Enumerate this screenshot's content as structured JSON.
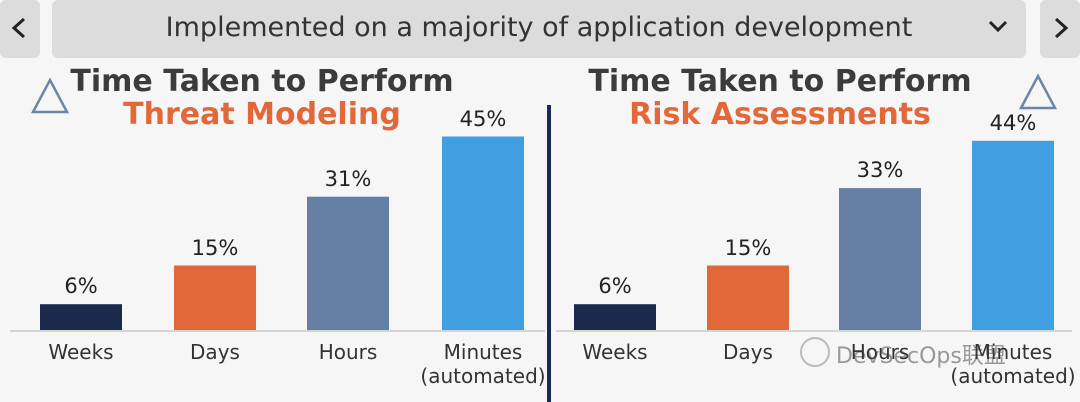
{
  "header": {
    "title": "Implemented on a majority of application development"
  },
  "chart_data": [
    {
      "type": "bar",
      "title": "Time Taken to Perform",
      "subtitle": "Threat Modeling",
      "categories": [
        "Weeks",
        "Days",
        "Hours",
        "Minutes (automated)"
      ],
      "values": [
        6,
        15,
        31,
        45
      ],
      "value_labels": [
        "6%",
        "15%",
        "31%",
        "45%"
      ],
      "colors": [
        "#1b2a4c",
        "#e2683a",
        "#667fa4",
        "#3f9fe0"
      ]
    },
    {
      "type": "bar",
      "title": "Time Taken to Perform",
      "subtitle": "Risk Assessments",
      "categories": [
        "Weeks",
        "Days",
        "Hours",
        "Minutes (automated)"
      ],
      "values": [
        6,
        15,
        33,
        44
      ],
      "value_labels": [
        "6%",
        "15%",
        "33%",
        "44%"
      ],
      "colors": [
        "#1b2a4c",
        "#e2683a",
        "#667fa4",
        "#3f9fe0"
      ]
    }
  ],
  "watermark": "DevSecOps联盟"
}
